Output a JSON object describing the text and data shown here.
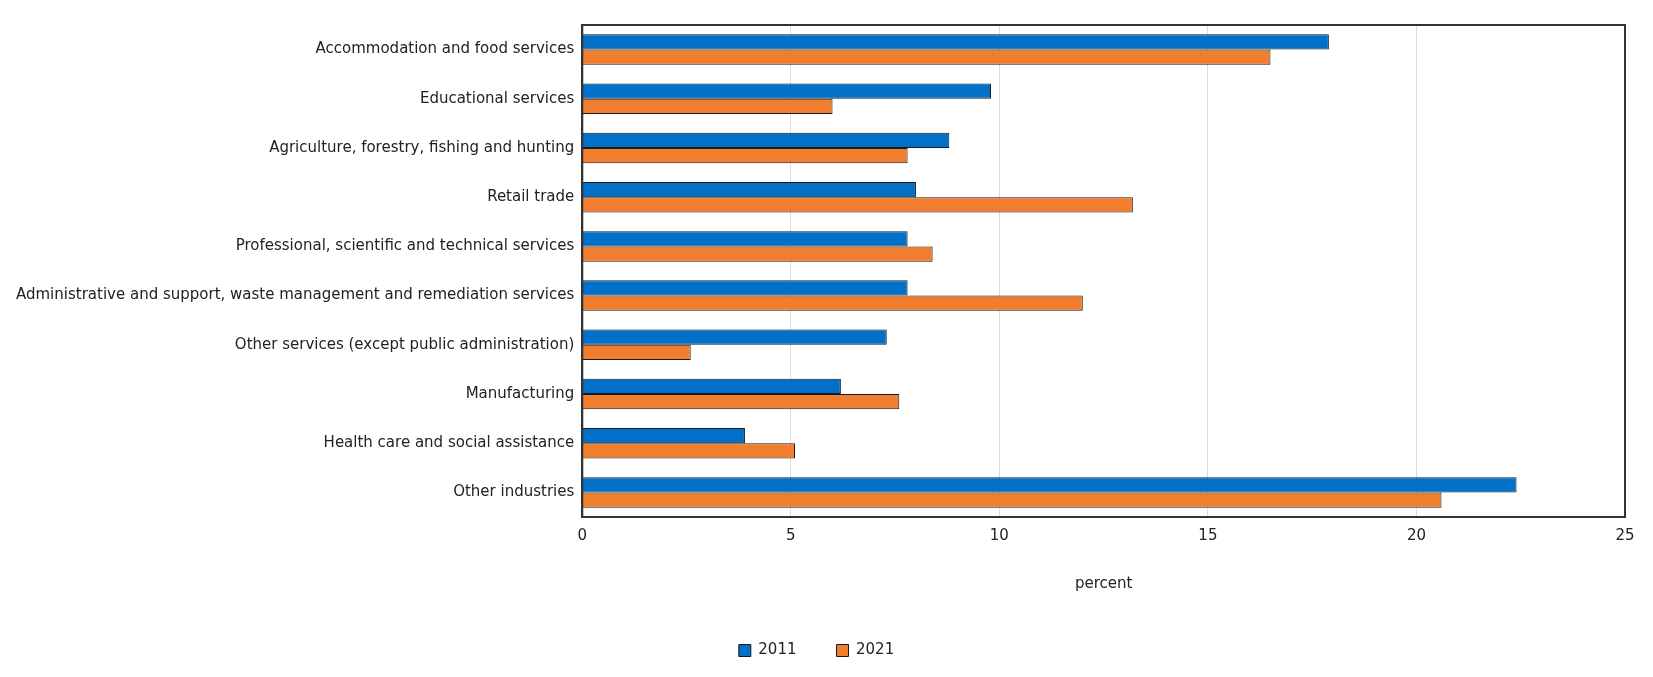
{
  "chart_data": {
    "type": "bar",
    "orientation": "horizontal",
    "xlabel": "percent",
    "categories": [
      "Accommodation and food services",
      "Educational services",
      "Agriculture, forestry, fishing and hunting",
      "Retail trade",
      "Professional, scientific and technical services",
      "Administrative and support, waste management and remediation services",
      "Other services (except public administration)",
      "Manufacturing",
      "Health care and social assistance",
      "Other industries"
    ],
    "series": [
      {
        "name": "2011",
        "color": "#0070c8",
        "values": [
          17.9,
          9.8,
          8.8,
          8.0,
          7.8,
          7.8,
          7.3,
          6.2,
          3.9,
          22.4
        ]
      },
      {
        "name": "2021",
        "color": "#f07e2e",
        "values": [
          16.5,
          6.0,
          7.8,
          13.2,
          8.4,
          12.0,
          2.6,
          7.6,
          5.1,
          20.6
        ]
      }
    ],
    "xlim": [
      0,
      25
    ],
    "xticks": [
      0,
      5,
      10,
      15,
      20,
      25
    ],
    "grid": "x",
    "legend": "bottom"
  }
}
